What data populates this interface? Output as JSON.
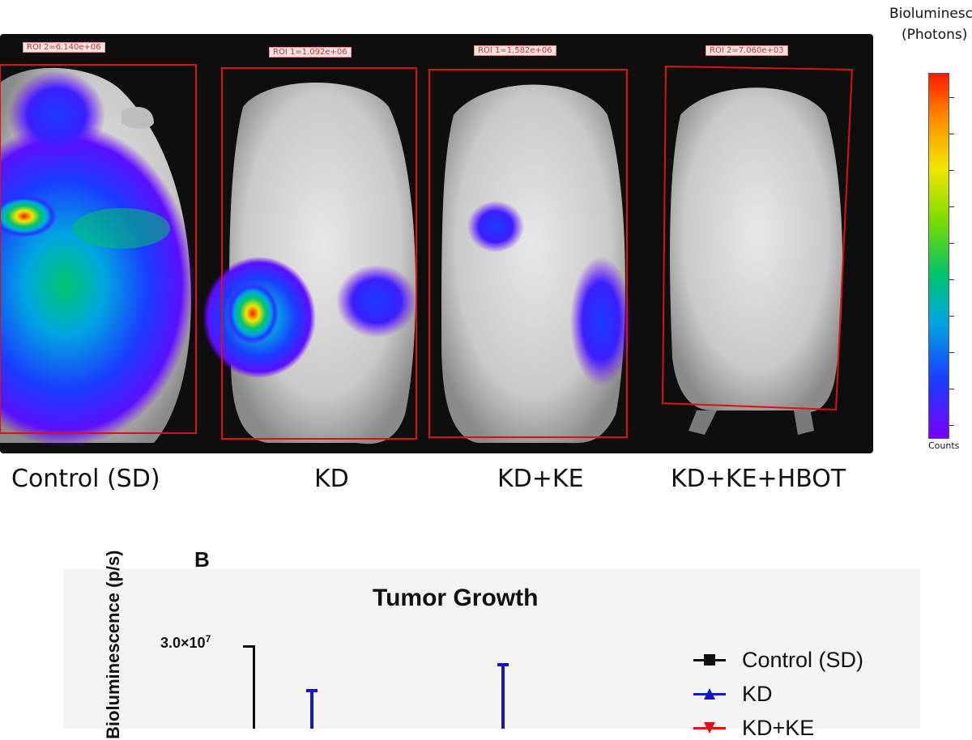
{
  "panel_a": {
    "mice": [
      {
        "group": "Control (SD)",
        "roi_label": "ROI 2=6.140e+06"
      },
      {
        "group": "KD",
        "roi_label": "ROI 1=1.092e+06"
      },
      {
        "group": "KD+KE",
        "roi_label": "ROI 1=1.582e+06"
      },
      {
        "group": "KD+KE+HBOT",
        "roi_label": "ROI 2=7.060e+03"
      }
    ],
    "colorbar": {
      "title_line1": "Bioluminescence",
      "title_line2": "(Photons)",
      "bottom_label": "Counts",
      "colors": [
        "#ff1a00",
        "#ff8a00",
        "#f2e600",
        "#7ddc00",
        "#00c46a",
        "#00a8e0",
        "#1a3cff",
        "#7a00ff"
      ]
    }
  },
  "panel_b": {
    "letter": "B",
    "chart_data": {
      "type": "line",
      "title": "Tumor Growth",
      "ylabel": "Bioluminescence (p/s)",
      "y_tick_top": {
        "mantissa": "3.0",
        "times": "×",
        "base": "10",
        "exponent": "7"
      },
      "series": [
        {
          "name": "Control (SD)",
          "color": "#111111",
          "marker": "square"
        },
        {
          "name": "KD",
          "color": "#1414c8",
          "marker": "triangle-up"
        },
        {
          "name": "KD+KE",
          "color": "#e01010",
          "marker": "triangle-down"
        }
      ]
    }
  }
}
